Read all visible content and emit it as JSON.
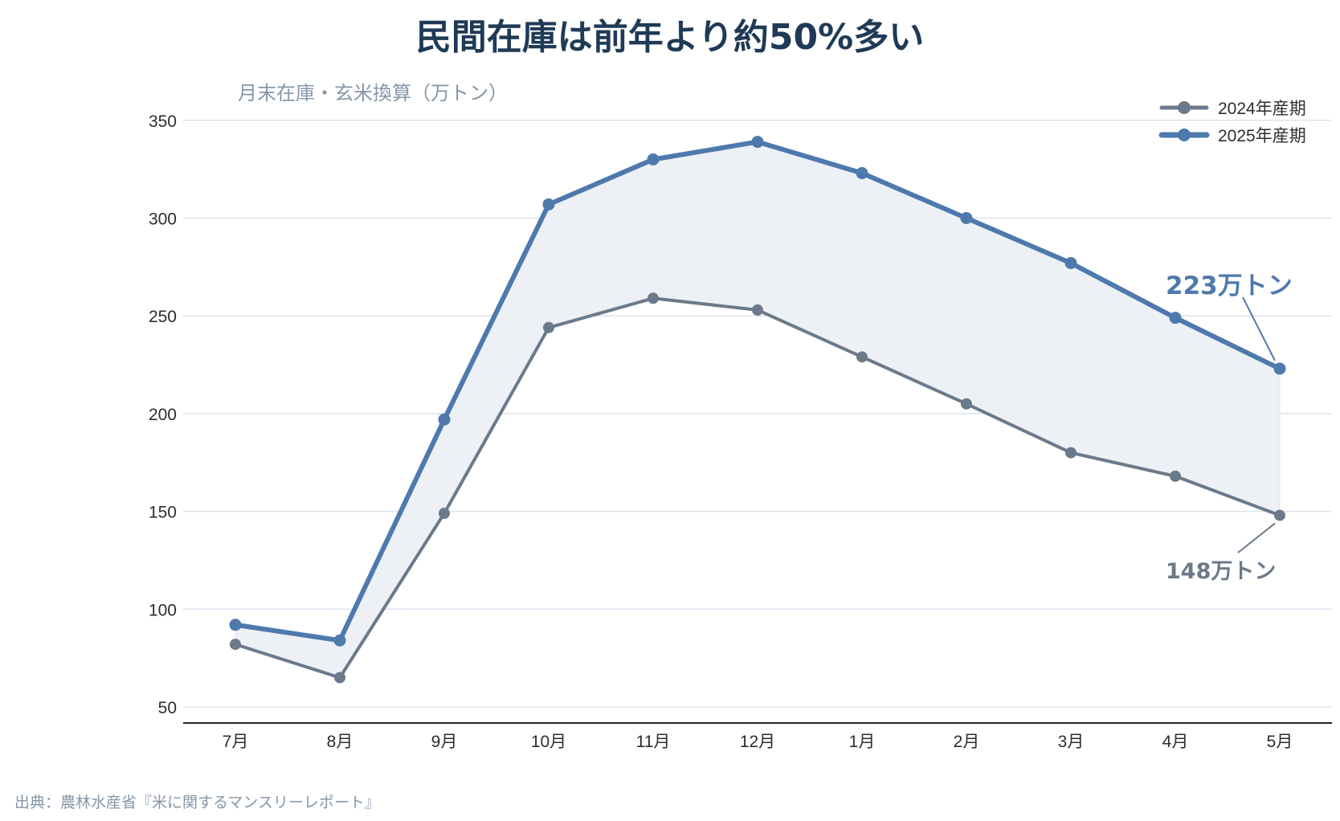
{
  "title": "民間在庫は前年より約50%多い",
  "source": "出典：農林水産省『米に関するマンスリーレポート』",
  "chart_data": {
    "type": "line",
    "title": "民間在庫は前年より約50%多い",
    "ylabel": "月末在庫・玄米換算（万トン）",
    "xlabel": "",
    "categories": [
      "7月",
      "8月",
      "9月",
      "10月",
      "11月",
      "12月",
      "1月",
      "2月",
      "3月",
      "4月",
      "5月"
    ],
    "ylim": [
      40,
      360
    ],
    "yticks": [
      50,
      100,
      150,
      200,
      250,
      300,
      350
    ],
    "grid": true,
    "legend_position": "top-right",
    "fill_between_series": true,
    "series": [
      {
        "name": "2024年産期",
        "color": "#6b7a8a",
        "values": [
          82,
          65,
          149,
          244,
          259,
          253,
          229,
          205,
          180,
          168,
          148
        ]
      },
      {
        "name": "2025年産期",
        "color": "#4e79ad",
        "values": [
          92,
          84,
          197,
          307,
          330,
          339,
          323,
          300,
          277,
          249,
          223
        ]
      }
    ],
    "annotations": [
      {
        "text": "223万トン",
        "series": "2025年産期",
        "category": "5月",
        "value": 223,
        "color": "#4e79ad"
      },
      {
        "text": "148万トン",
        "series": "2024年産期",
        "category": "5月",
        "value": 148,
        "color": "#6b7a8a"
      }
    ],
    "fill_color": "#edf0f5"
  }
}
